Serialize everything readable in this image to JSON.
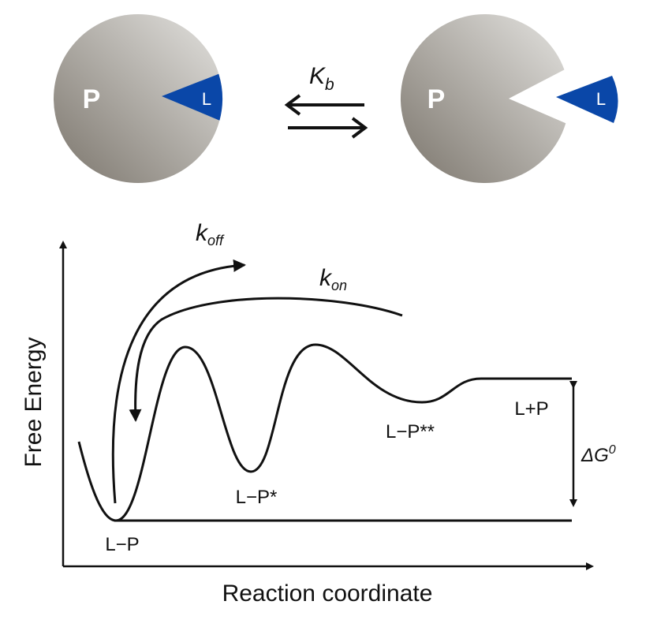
{
  "top": {
    "left_protein": "P",
    "left_ligand": "L",
    "equilibrium": {
      "symbol": "K",
      "subscript": "b"
    },
    "right_protein": "P",
    "right_ligand": "L"
  },
  "diagram": {
    "k_off": {
      "symbol": "k",
      "subscript": "off"
    },
    "k_on": {
      "symbol": "k",
      "subscript": "on"
    },
    "states": [
      "L−P",
      "L−P*",
      "L−P**",
      "L+P"
    ],
    "delta_g": {
      "symbol": "ΔG",
      "superscript": "0"
    },
    "y_axis_label": "Free Energy",
    "x_axis_label": "Reaction coordinate"
  }
}
